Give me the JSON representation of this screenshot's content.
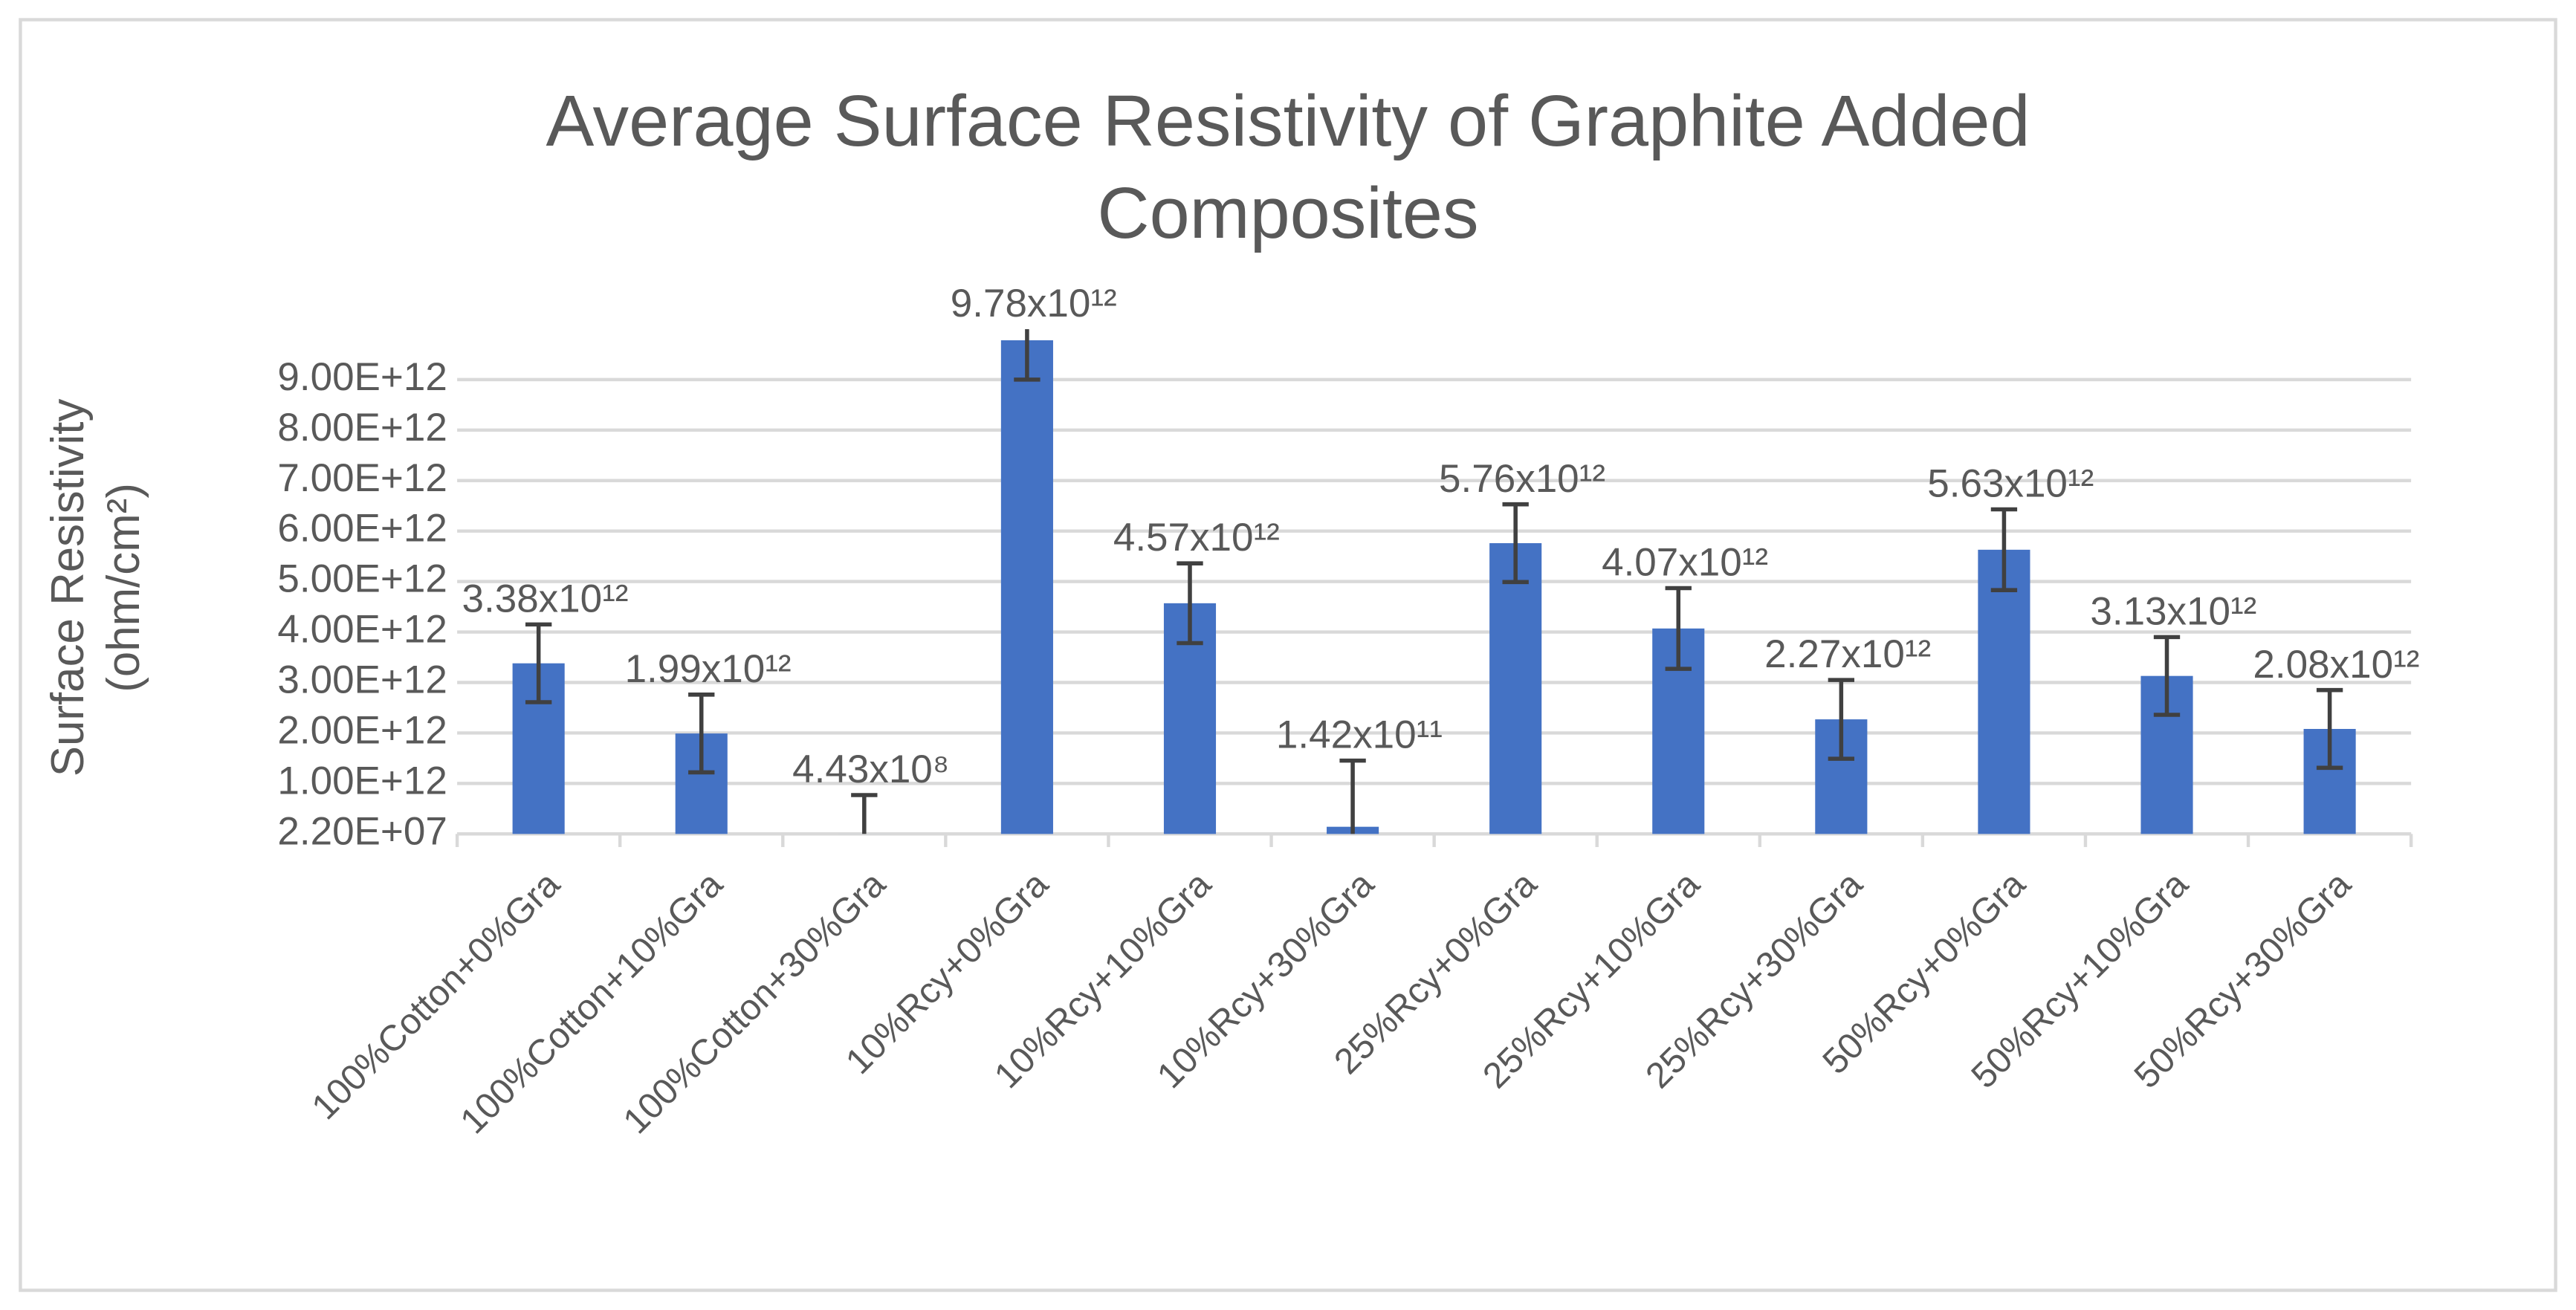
{
  "chart_data": {
    "type": "bar",
    "title": "Average Surface Resistivity of Graphite Added Composites",
    "ylabel": "Surface Resistivity (ohm/cm²)",
    "categories": [
      "100%Cotton+0%Gra",
      "100%Cotton+10%Gra",
      "100%Cotton+30%Gra",
      "10%Rcy+0%Gra",
      "10%Rcy+10%Gra",
      "10%Rcy+30%Gra",
      "25%Rcy+0%Gra",
      "25%Rcy+10%Gra",
      "25%Rcy+30%Gra",
      "50%Rcy+0%Gra",
      "50%Rcy+10%Gra",
      "50%Rcy+30%Gra"
    ],
    "values": [
      3380000000000.0,
      1990000000000.0,
      443000000.0,
      9780000000000.0,
      4570000000000.0,
      142000000000.0,
      5760000000000.0,
      4070000000000.0,
      2270000000000.0,
      5630000000000.0,
      3130000000000.0,
      2080000000000.0
    ],
    "value_labels": [
      "3.38x10¹²",
      "1.99x10¹²",
      "4.43x10⁸",
      "9.78x10¹²",
      "4.57x10¹²",
      "1.42x10¹¹",
      "5.76x10¹²",
      "4.07x10¹²",
      "2.27x10¹²",
      "5.63x10¹²",
      "3.13x10¹²",
      "2.08x10¹²"
    ],
    "errors": [
      770000000000.0,
      770000000000.0,
      770000000000.0,
      780000000000.0,
      790000000000.0,
      1310000000000.0,
      770000000000.0,
      800000000000.0,
      780000000000.0,
      800000000000.0,
      770000000000.0,
      770000000000.0
    ],
    "color": "#4472c4",
    "error_color": "#404040",
    "ylim": [
      22000000.0,
      10000000000000.0
    ],
    "yticks": [
      {
        "value": 22000000.0,
        "label": "2.20E+07"
      },
      {
        "value": 1000000000000.0,
        "label": "1.00E+12"
      },
      {
        "value": 2000000000000.0,
        "label": "2.00E+12"
      },
      {
        "value": 3000000000000.0,
        "label": "3.00E+12"
      },
      {
        "value": 4000000000000.0,
        "label": "4.00E+12"
      },
      {
        "value": 5000000000000.0,
        "label": "5.00E+12"
      },
      {
        "value": 6000000000000.0,
        "label": "6.00E+12"
      },
      {
        "value": 7000000000000.0,
        "label": "7.00E+12"
      },
      {
        "value": 8000000000000.0,
        "label": "8.00E+12"
      },
      {
        "value": 9000000000000.0,
        "label": "9.00E+12"
      }
    ],
    "grid": true
  }
}
